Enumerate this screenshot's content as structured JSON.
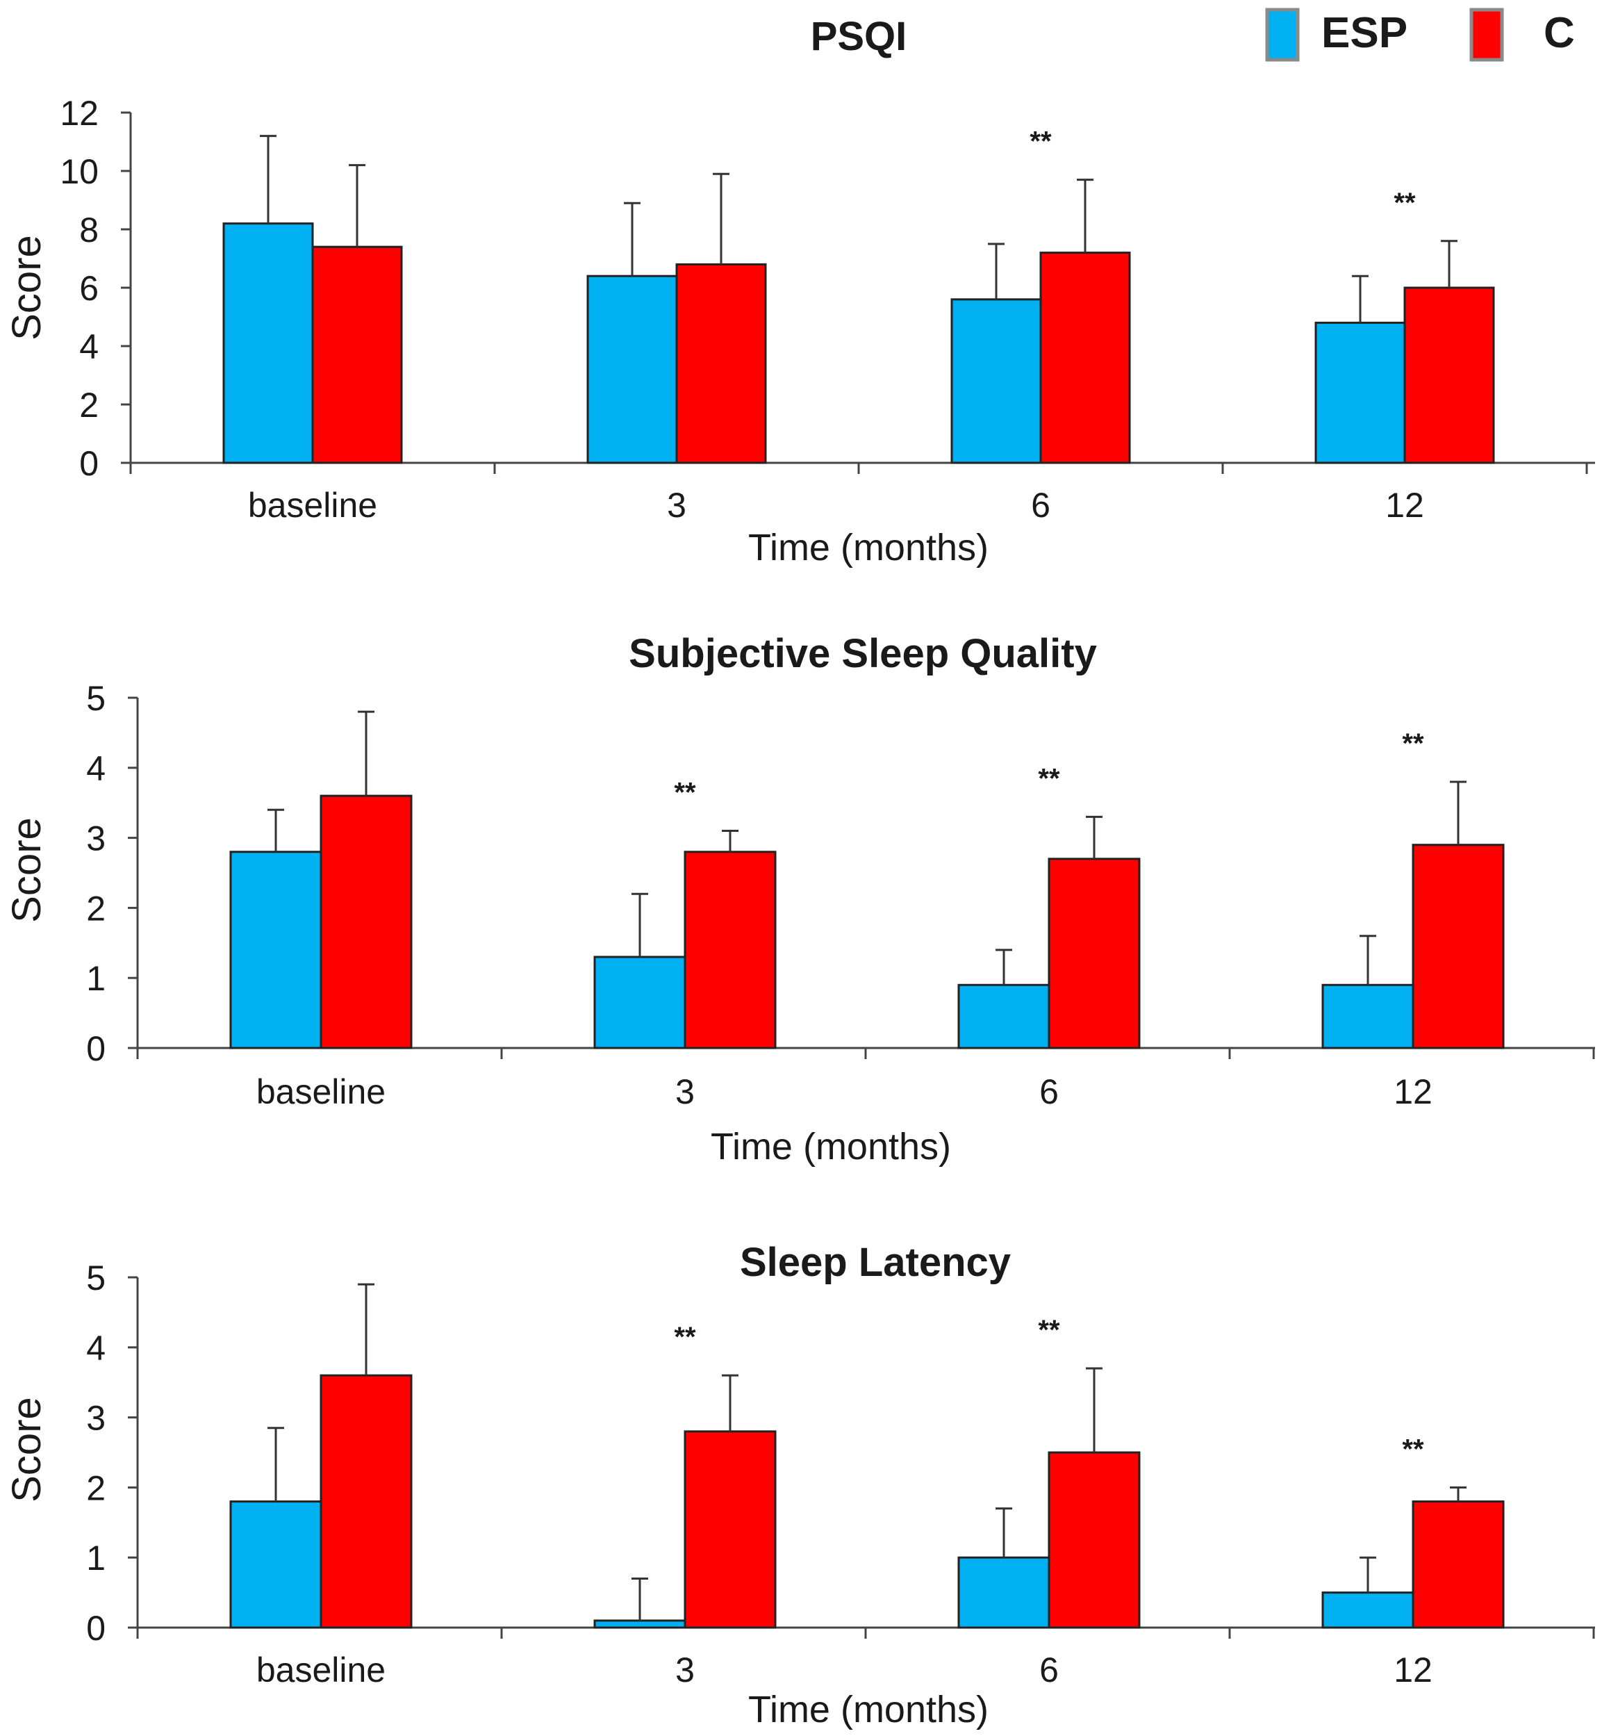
{
  "legend": [
    {
      "name": "ESP",
      "color": "#00b0f0"
    },
    {
      "name": "C",
      "color": "#ff0000"
    }
  ],
  "chart_data": [
    {
      "type": "bar",
      "title": "PSQI",
      "xlabel": "Time (months)",
      "ylabel": "Score",
      "categories": [
        "baseline",
        "3",
        "6",
        "12"
      ],
      "ylim": [
        0,
        12
      ],
      "yticks": [
        "0",
        "2",
        "4",
        "6",
        "8",
        "10",
        "12"
      ],
      "series": [
        {
          "name": "ESP",
          "color": "#00b0f0",
          "values": [
            8.2,
            6.4,
            5.6,
            4.8
          ],
          "errors": [
            3.0,
            2.5,
            1.9,
            1.6
          ]
        },
        {
          "name": "C",
          "color": "#ff0000",
          "values": [
            7.4,
            6.8,
            7.2,
            6.0
          ],
          "errors": [
            2.8,
            3.1,
            2.5,
            1.6
          ]
        }
      ],
      "significance": [
        "",
        "",
        "**",
        "**"
      ]
    },
    {
      "type": "bar",
      "title": "Subjective Sleep Quality",
      "xlabel": "Time (months)",
      "ylabel": "Score",
      "categories": [
        "baseline",
        "3",
        "6",
        "12"
      ],
      "ylim": [
        0,
        5
      ],
      "yticks": [
        "0",
        "1",
        "2",
        "3",
        "4",
        "5"
      ],
      "series": [
        {
          "name": "ESP",
          "color": "#00b0f0",
          "values": [
            2.8,
            1.3,
            0.9,
            0.9
          ],
          "errors": [
            0.6,
            0.9,
            0.5,
            0.7
          ]
        },
        {
          "name": "C",
          "color": "#ff0000",
          "values": [
            3.6,
            2.8,
            2.7,
            2.9
          ],
          "errors": [
            1.2,
            0.3,
            0.6,
            0.9
          ]
        }
      ],
      "significance": [
        "",
        "**",
        "**",
        "**"
      ]
    },
    {
      "type": "bar",
      "title": "Sleep Latency",
      "xlabel": "Time (months)",
      "ylabel": "Score",
      "categories": [
        "baseline",
        "3",
        "6",
        "12"
      ],
      "ylim": [
        0,
        5
      ],
      "yticks": [
        "0",
        "1",
        "2",
        "3",
        "4",
        "5"
      ],
      "series": [
        {
          "name": "ESP",
          "color": "#00b0f0",
          "values": [
            1.8,
            0.1,
            1.0,
            0.5
          ],
          "errors": [
            1.05,
            0.6,
            0.7,
            0.5
          ]
        },
        {
          "name": "C",
          "color": "#ff0000",
          "values": [
            3.6,
            2.8,
            2.5,
            1.8
          ],
          "errors": [
            1.3,
            0.8,
            1.2,
            0.2
          ]
        }
      ],
      "significance": [
        "",
        "**",
        "**",
        "**"
      ]
    }
  ]
}
